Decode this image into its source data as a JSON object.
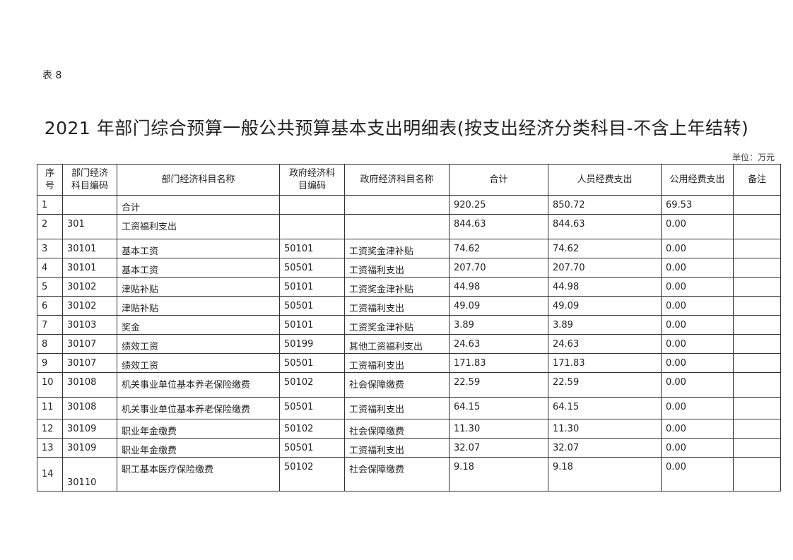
{
  "header": {
    "label": "表 8",
    "title": "2021 年部门综合预算一般公共预算基本支出明细表(按支出经济分类科目-不含上年结转)",
    "unit": "单位：万元"
  },
  "table": {
    "columns": [
      [
        "序",
        "号"
      ],
      [
        "部门经济",
        "科目编码"
      ],
      [
        "部门经济科目名称"
      ],
      [
        "政府经济科",
        "目编码"
      ],
      [
        "政府经济科目名称"
      ],
      [
        "合计"
      ],
      [
        "人员经费支出"
      ],
      [
        "公用经费支出"
      ],
      [
        "备注"
      ]
    ],
    "rows": [
      [
        "1",
        null,
        "合计",
        null,
        null,
        "920.25",
        "850.72",
        "69.53",
        null
      ],
      [
        "2",
        "301",
        "工资福利支出",
        null,
        null,
        "844.63",
        "844.63",
        "0.00",
        null
      ],
      [
        "3",
        "30101",
        "基本工资",
        "50101",
        "工资奖金津补贴",
        "74.62",
        "74.62",
        "0.00",
        null
      ],
      [
        "4",
        "30101",
        "基本工资",
        "50501",
        "工资福利支出",
        "207.70",
        "207.70",
        "0.00",
        null
      ],
      [
        "5",
        "30102",
        "津贴补贴",
        "50101",
        "工资奖金津补贴",
        "44.98",
        "44.98",
        "0.00",
        null
      ],
      [
        "6",
        "30102",
        "津贴补贴",
        "50501",
        "工资福利支出",
        "49.09",
        "49.09",
        "0.00",
        null
      ],
      [
        "7",
        "30103",
        "奖金",
        "50101",
        "工资奖金津补贴",
        "3.89",
        "3.89",
        "0.00",
        null
      ],
      [
        "8",
        "30107",
        "绩效工资",
        "50199",
        "其他工资福利支出",
        "24.63",
        "24.63",
        "0.00",
        null
      ],
      [
        "9",
        "30107",
        "绩效工资",
        "50501",
        "工资福利支出",
        "171.83",
        "171.83",
        "0.00",
        null
      ],
      [
        "10",
        "30108",
        "机关事业单位基本养老保险缴费",
        "50102",
        "社会保障缴费",
        "22.59",
        "22.59",
        "0.00",
        null
      ],
      [
        "11",
        "30108",
        "机关事业单位基本养老保险缴费",
        "50501",
        "工资福利支出",
        "64.15",
        "64.15",
        "0.00",
        null
      ],
      [
        "12",
        "30109",
        "职业年金缴费",
        "50102",
        "社会保障缴费",
        "11.30",
        "11.30",
        "0.00",
        null
      ],
      [
        "13",
        "30109",
        "职业年金缴费",
        "50501",
        "工资福利支出",
        "32.07",
        "32.07",
        "0.00",
        null
      ],
      [
        "14",
        "30110",
        "职工基本医疗保险缴费",
        "50102",
        "社会保障缴费",
        "9.18",
        "9.18",
        "0.00",
        null
      ]
    ]
  }
}
